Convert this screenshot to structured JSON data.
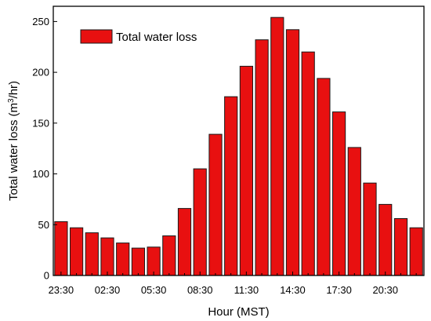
{
  "chart_data": {
    "type": "bar",
    "xlabel": "Hour (MST)",
    "ylabel": {
      "main": "Total water loss (m",
      "sup": "3",
      "end": "/hr)"
    },
    "legend": {
      "label": "Total water loss",
      "placement": "top-left"
    },
    "x_tick_labels": [
      "23:30",
      "02:30",
      "05:30",
      "08:30",
      "11:30",
      "14:30",
      "17:30",
      "20:30"
    ],
    "y_ticks": [
      0,
      50,
      100,
      150,
      200,
      250
    ],
    "ylim": [
      0,
      265
    ],
    "grid": false,
    "series": [
      {
        "values": [
          53,
          47,
          42,
          37,
          32,
          27,
          28,
          39,
          66,
          105,
          139,
          176,
          206,
          232,
          254,
          242,
          220,
          194,
          161,
          126,
          91,
          70,
          56,
          47
        ]
      }
    ],
    "colors": {
      "bar": "#e81010",
      "bar_edge": "#1a1a1a"
    }
  }
}
